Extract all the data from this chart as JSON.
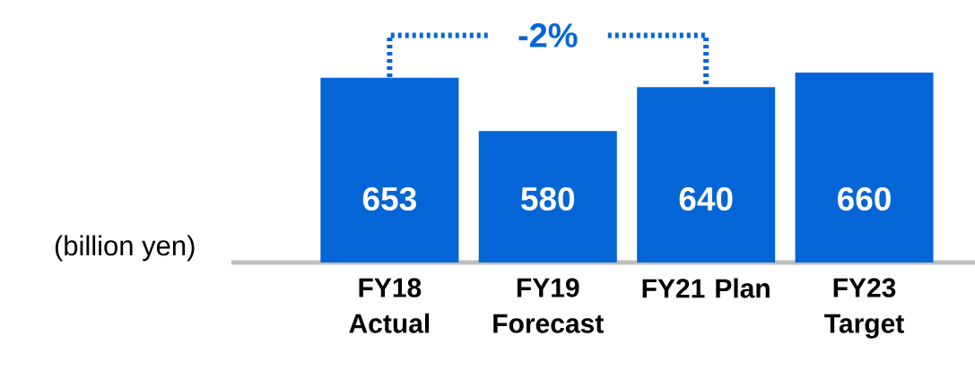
{
  "chart_data": {
    "type": "bar",
    "ylabel": "(billion yen)",
    "categories": [
      "FY18 Actual",
      "FY19 Forecast",
      "FY21 Plan",
      "FY23 Target"
    ],
    "values": [
      653,
      580,
      640,
      660
    ],
    "color": "#0466d6",
    "ylim": [
      400,
      660
    ],
    "data_labels": true,
    "annotations": [
      "-2%"
    ]
  }
}
